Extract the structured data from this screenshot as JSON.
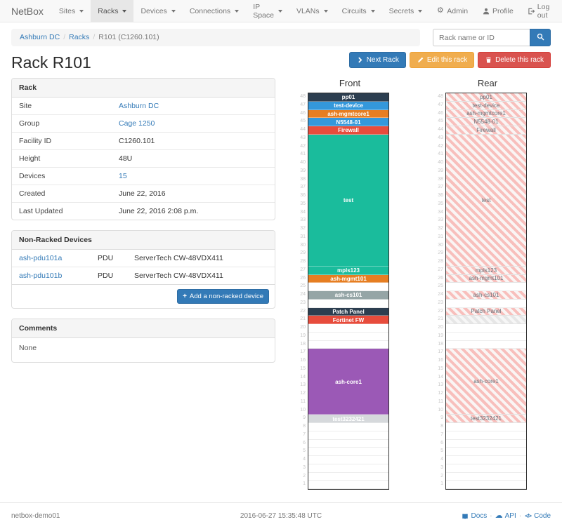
{
  "navbar": {
    "brand": "NetBox",
    "items": [
      {
        "label": "Sites",
        "active": false
      },
      {
        "label": "Racks",
        "active": true
      },
      {
        "label": "Devices",
        "active": false
      },
      {
        "label": "Connections",
        "active": false
      },
      {
        "label": "IP Space",
        "active": false
      },
      {
        "label": "VLANs",
        "active": false
      },
      {
        "label": "Circuits",
        "active": false
      },
      {
        "label": "Secrets",
        "active": false
      }
    ],
    "right": [
      {
        "label": "Admin",
        "icon": "gear-icon"
      },
      {
        "label": "Profile",
        "icon": "user-icon"
      },
      {
        "label": "Log out",
        "icon": "logout-icon"
      }
    ]
  },
  "breadcrumb": {
    "items": [
      "Ashburn DC",
      "Racks",
      "R101 (C1260.101)"
    ]
  },
  "search": {
    "placeholder": "Rack name or ID",
    "button_icon": "search-icon"
  },
  "page": {
    "title": "Rack R101"
  },
  "actions": [
    {
      "label": "Next Rack",
      "icon": "chevron-right-icon",
      "bg": "#337ab7",
      "border": "#2e6da4"
    },
    {
      "label": "Edit this rack",
      "icon": "pencil-icon",
      "bg": "#f0ad4e",
      "border": "#eea236"
    },
    {
      "label": "Delete this rack",
      "icon": "trash-icon",
      "bg": "#d9534f",
      "border": "#d43f3a"
    }
  ],
  "rack_panel": {
    "title": "Rack",
    "rows": [
      {
        "label": "Site",
        "value": "Ashburn DC",
        "link": true
      },
      {
        "label": "Group",
        "value": "Cage 1250",
        "link": true
      },
      {
        "label": "Facility ID",
        "value": "C1260.101",
        "link": false
      },
      {
        "label": "Height",
        "value": "48U",
        "link": false
      },
      {
        "label": "Devices",
        "value": "15",
        "link": true
      },
      {
        "label": "Created",
        "value": "June 22, 2016",
        "link": false
      },
      {
        "label": "Last Updated",
        "value": "June 22, 2016 2:08 p.m.",
        "link": false
      }
    ]
  },
  "non_racked": {
    "title": "Non-Racked Devices",
    "rows": [
      {
        "name": "ash-pdu101a",
        "type": "PDU",
        "desc": "ServerTech CW-48VDX411"
      },
      {
        "name": "ash-pdu101b",
        "type": "PDU",
        "desc": "ServerTech CW-48VDX411"
      }
    ],
    "add_label": "Add a non-racked device",
    "add_icon": "plus-icon"
  },
  "comments": {
    "title": "Comments",
    "body": "None"
  },
  "elevations": {
    "height_units": 48,
    "front": {
      "title": "Front",
      "slots": [
        {
          "unit": 48,
          "size": 1,
          "label": "pp01",
          "bg": "#2c3e50",
          "fg": "#fff"
        },
        {
          "unit": 47,
          "size": 1,
          "label": "test-device",
          "bg": "#3498db",
          "fg": "#fff"
        },
        {
          "unit": 46,
          "size": 1,
          "label": "ash-mgmtcore1",
          "bg": "#e67e22",
          "fg": "#fff"
        },
        {
          "unit": 45,
          "size": 1,
          "label": "N5548-01",
          "bg": "#3498db",
          "fg": "#fff"
        },
        {
          "unit": 44,
          "size": 1,
          "label": "Firewall",
          "bg": "#e74c3c",
          "fg": "#fff"
        },
        {
          "unit": 28,
          "size": 16,
          "label": "test",
          "bg": "#1abc9c",
          "fg": "#fff"
        },
        {
          "unit": 27,
          "size": 1,
          "label": "mpls123",
          "bg": "#1abc9c",
          "fg": "#fff"
        },
        {
          "unit": 26,
          "size": 1,
          "label": "ash-mgmt101",
          "bg": "#e67e22",
          "fg": "#fff"
        },
        {
          "unit": 24,
          "size": 1,
          "label": "ash-cs101",
          "bg": "#95a5a6",
          "fg": "#fff"
        },
        {
          "unit": 22,
          "size": 1,
          "label": "Patch Panel",
          "bg": "#2c3e50",
          "fg": "#fff"
        },
        {
          "unit": 21,
          "size": 1,
          "label": "Fortinet FW",
          "bg": "#e74c3c",
          "fg": "#fff"
        },
        {
          "unit": 10,
          "size": 8,
          "label": "ash-core1",
          "bg": "#9b59b6",
          "fg": "#fff"
        },
        {
          "unit": 9,
          "size": 1,
          "label": "test3232421",
          "bg": "#d6d9dc",
          "fg": "#fff"
        }
      ]
    },
    "rear": {
      "title": "Rear",
      "slots": [
        {
          "unit": 48,
          "size": 1,
          "label": "pp01",
          "style": "stripe"
        },
        {
          "unit": 47,
          "size": 1,
          "label": "test-device",
          "style": "stripe"
        },
        {
          "unit": 46,
          "size": 1,
          "label": "ash-mgmtcore1",
          "style": "stripe"
        },
        {
          "unit": 45,
          "size": 1,
          "label": "N5548-01",
          "style": "stripe"
        },
        {
          "unit": 44,
          "size": 1,
          "label": "Firewall",
          "style": "stripe"
        },
        {
          "unit": 28,
          "size": 16,
          "label": "test",
          "style": "stripe"
        },
        {
          "unit": 27,
          "size": 1,
          "label": "mpls123",
          "style": "stripe"
        },
        {
          "unit": 26,
          "size": 1,
          "label": "ash-mgmt101",
          "style": "stripe"
        },
        {
          "unit": 24,
          "size": 1,
          "label": "ash-cs101",
          "style": "stripe"
        },
        {
          "unit": 22,
          "size": 1,
          "label": "Patch Panel",
          "style": "stripe"
        },
        {
          "unit": 21,
          "size": 1,
          "label": "",
          "style": "stripe-gray"
        },
        {
          "unit": 10,
          "size": 8,
          "label": "ash-core1",
          "style": "stripe"
        },
        {
          "unit": 9,
          "size": 1,
          "label": "test3232421",
          "style": "stripe"
        }
      ]
    }
  },
  "footer": {
    "hostname": "netbox-demo01",
    "timestamp": "2016-06-27 15:35:48 UTC",
    "links": [
      {
        "label": "Docs",
        "icon": "book-icon"
      },
      {
        "label": "API",
        "icon": "cloud-icon"
      },
      {
        "label": "Code",
        "icon": "code-icon"
      }
    ]
  },
  "colors": {
    "primary": "#337ab7",
    "warning": "#f0ad4e",
    "danger": "#d9534f",
    "teal": "#1abc9c",
    "navy": "#2c3e50",
    "blue": "#3498db",
    "orange": "#e67e22",
    "red": "#e74c3c",
    "purple": "#9b59b6",
    "gray": "#95a5a6",
    "rear_stripe": "#f8bfbc"
  }
}
